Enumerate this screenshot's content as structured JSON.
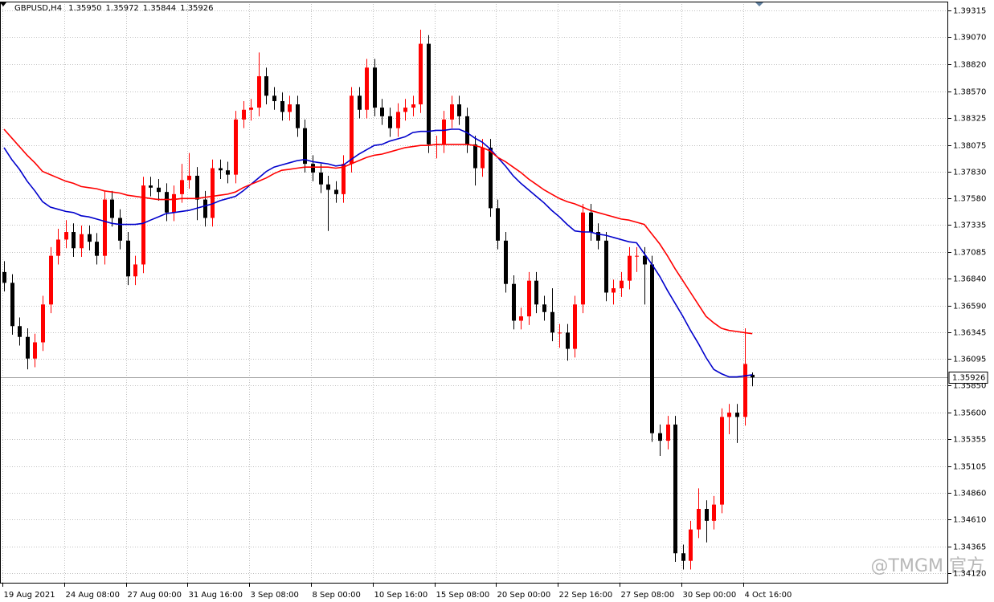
{
  "chart_data": {
    "type": "candlestick",
    "header": {
      "symbol": "GBPUSD,H4",
      "ohlc": [
        "1.35950",
        "1.35972",
        "1.35844",
        "1.35926"
      ]
    },
    "watermark": "@TMGM 官方",
    "up_color": "#ff0000",
    "down_color": "#000000",
    "categories": [
      "19 Aug 2021",
      null,
      null,
      null,
      null,
      null,
      null,
      null,
      "24 Aug 08:00",
      null,
      null,
      null,
      null,
      null,
      null,
      null,
      "27 Aug 00:00",
      null,
      null,
      null,
      null,
      null,
      null,
      null,
      "31 Aug 16:00",
      null,
      null,
      null,
      null,
      null,
      null,
      null,
      "3 Sep 08:00",
      null,
      null,
      null,
      null,
      null,
      null,
      null,
      "8 Sep 00:00",
      null,
      null,
      null,
      null,
      null,
      null,
      null,
      "10 Sep 16:00",
      null,
      null,
      null,
      null,
      null,
      null,
      null,
      "15 Sep 08:00",
      null,
      null,
      null,
      null,
      null,
      null,
      null,
      "20 Sep 00:00",
      null,
      null,
      null,
      null,
      null,
      null,
      null,
      "22 Sep 16:00",
      null,
      null,
      null,
      null,
      null,
      null,
      null,
      "27 Sep 08:00",
      null,
      null,
      null,
      null,
      null,
      null,
      null,
      "30 Sep 00:00",
      null,
      null,
      null,
      null,
      null,
      null,
      null,
      "4 Oct 16:00",
      null
    ],
    "candles": [
      [
        1.369,
        1.37,
        1.3672,
        1.368
      ],
      [
        1.368,
        1.3688,
        1.3632,
        1.364
      ],
      [
        1.364,
        1.3648,
        1.3622,
        1.363
      ],
      [
        1.363,
        1.3638,
        1.36,
        1.361
      ],
      [
        1.361,
        1.3633,
        1.3602,
        1.3625
      ],
      [
        1.3625,
        1.3668,
        1.3617,
        1.366
      ],
      [
        1.366,
        1.3713,
        1.3652,
        1.3705
      ],
      [
        1.3705,
        1.373,
        1.3697,
        1.372
      ],
      [
        1.372,
        1.3738,
        1.3712,
        1.3727
      ],
      [
        1.3727,
        1.3735,
        1.3704,
        1.3712
      ],
      [
        1.3712,
        1.3733,
        1.3704,
        1.3725
      ],
      [
        1.3725,
        1.3733,
        1.371,
        1.3718
      ],
      [
        1.3718,
        1.3726,
        1.3697,
        1.3705
      ],
      [
        1.3705,
        1.3765,
        1.3697,
        1.3757
      ],
      [
        1.3757,
        1.3765,
        1.3732,
        1.374
      ],
      [
        1.374,
        1.3748,
        1.3711,
        1.3719
      ],
      [
        1.3719,
        1.3727,
        1.3678,
        1.3686
      ],
      [
        1.3686,
        1.3705,
        1.3678,
        1.3697
      ],
      [
        1.3697,
        1.3778,
        1.3689,
        1.377
      ],
      [
        1.377,
        1.3778,
        1.376,
        1.3768
      ],
      [
        1.3768,
        1.3776,
        1.3756,
        1.3764
      ],
      [
        1.3764,
        1.3772,
        1.3737,
        1.3745
      ],
      [
        1.3745,
        1.377,
        1.3737,
        1.3762
      ],
      [
        1.3762,
        1.379,
        1.3754,
        1.3775
      ],
      [
        1.3775,
        1.38,
        1.3767,
        1.3779
      ],
      [
        1.3779,
        1.3787,
        1.3738,
        1.3757
      ],
      [
        1.3757,
        1.3765,
        1.3732,
        1.374
      ],
      [
        1.374,
        1.3794,
        1.3732,
        1.3786
      ],
      [
        1.3786,
        1.3794,
        1.3776,
        1.3784
      ],
      [
        1.3784,
        1.3792,
        1.3772,
        1.378
      ],
      [
        1.378,
        1.3839,
        1.3772,
        1.3831
      ],
      [
        1.3831,
        1.3848,
        1.3823,
        1.384
      ],
      [
        1.384,
        1.385,
        1.383,
        1.3842
      ],
      [
        1.3842,
        1.3893,
        1.3834,
        1.3871
      ],
      [
        1.3871,
        1.3879,
        1.3845,
        1.3853
      ],
      [
        1.3853,
        1.3861,
        1.384,
        1.3848
      ],
      [
        1.3848,
        1.3856,
        1.383,
        1.3838
      ],
      [
        1.3838,
        1.3853,
        1.383,
        1.3845
      ],
      [
        1.3845,
        1.3853,
        1.3815,
        1.3823
      ],
      [
        1.3823,
        1.3831,
        1.3782,
        1.379
      ],
      [
        1.379,
        1.3798,
        1.3774,
        1.3782
      ],
      [
        1.3782,
        1.379,
        1.3763,
        1.3771
      ],
      [
        1.3771,
        1.3779,
        1.3728,
        1.3766
      ],
      [
        1.3766,
        1.3774,
        1.3754,
        1.3762
      ],
      [
        1.3762,
        1.3798,
        1.3754,
        1.379
      ],
      [
        1.379,
        1.3861,
        1.3782,
        1.3853
      ],
      [
        1.3853,
        1.3861,
        1.3832,
        1.384
      ],
      [
        1.384,
        1.3887,
        1.3832,
        1.3879
      ],
      [
        1.3879,
        1.3887,
        1.3834,
        1.3842
      ],
      [
        1.3842,
        1.385,
        1.3826,
        1.3834
      ],
      [
        1.3834,
        1.3842,
        1.3815,
        1.3823
      ],
      [
        1.3823,
        1.3846,
        1.3815,
        1.3838
      ],
      [
        1.3838,
        1.385,
        1.383,
        1.3842
      ],
      [
        1.3842,
        1.3853,
        1.3834,
        1.3845
      ],
      [
        1.3845,
        1.3914,
        1.3837,
        1.3901
      ],
      [
        1.3901,
        1.3909,
        1.38,
        1.3808
      ],
      [
        1.3808,
        1.3816,
        1.3795,
        1.3808
      ],
      [
        1.3808,
        1.3839,
        1.38,
        1.3831
      ],
      [
        1.3831,
        1.3853,
        1.3823,
        1.3845
      ],
      [
        1.3845,
        1.3853,
        1.3826,
        1.3834
      ],
      [
        1.3834,
        1.3842,
        1.38,
        1.3808
      ],
      [
        1.3808,
        1.3816,
        1.377,
        1.3786
      ],
      [
        1.3786,
        1.3813,
        1.3778,
        1.3805
      ],
      [
        1.3805,
        1.3813,
        1.3741,
        1.3749
      ],
      [
        1.3749,
        1.3757,
        1.3711,
        1.3719
      ],
      [
        1.3719,
        1.3727,
        1.3671,
        1.3679
      ],
      [
        1.3679,
        1.3687,
        1.3637,
        1.3645
      ],
      [
        1.3645,
        1.3657,
        1.3637,
        1.3649
      ],
      [
        1.3649,
        1.369,
        1.3641,
        1.3682
      ],
      [
        1.3682,
        1.369,
        1.3652,
        1.366
      ],
      [
        1.366,
        1.3668,
        1.3645,
        1.3653
      ],
      [
        1.3653,
        1.3675,
        1.3626,
        1.3634
      ],
      [
        1.3634,
        1.3642,
        1.362,
        1.3634
      ],
      [
        1.3634,
        1.3642,
        1.3608,
        1.3619
      ],
      [
        1.3619,
        1.3668,
        1.3611,
        1.366
      ],
      [
        1.366,
        1.3753,
        1.3652,
        1.3745
      ],
      [
        1.3745,
        1.3753,
        1.3719,
        1.3727
      ],
      [
        1.3727,
        1.3735,
        1.3711,
        1.3719
      ],
      [
        1.3719,
        1.3727,
        1.3663,
        1.3671
      ],
      [
        1.3671,
        1.3683,
        1.366,
        1.3675
      ],
      [
        1.3675,
        1.369,
        1.3667,
        1.3682
      ],
      [
        1.3682,
        1.3713,
        1.3674,
        1.3705
      ],
      [
        1.3705,
        1.3713,
        1.369,
        1.3705
      ],
      [
        1.3705,
        1.3713,
        1.366,
        1.3697
      ],
      [
        1.3697,
        1.3705,
        1.3533,
        1.3541
      ],
      [
        1.3541,
        1.3549,
        1.352,
        1.3534
      ],
      [
        1.3534,
        1.3557,
        1.3526,
        1.3549
      ],
      [
        1.3549,
        1.3557,
        1.3422,
        1.343
      ],
      [
        1.343,
        1.3438,
        1.3415,
        1.3423
      ],
      [
        1.3423,
        1.346,
        1.3415,
        1.3452
      ],
      [
        1.3452,
        1.349,
        1.3444,
        1.3471
      ],
      [
        1.3471,
        1.3479,
        1.344,
        1.346
      ],
      [
        1.346,
        1.3483,
        1.3452,
        1.3475
      ],
      [
        1.3475,
        1.3564,
        1.3467,
        1.3556
      ],
      [
        1.3556,
        1.3568,
        1.354,
        1.356
      ],
      [
        1.356,
        1.3568,
        1.3532,
        1.3556
      ],
      [
        1.3556,
        1.3638,
        1.3548,
        1.3605
      ],
      [
        1.3595,
        1.35972,
        1.35844,
        1.35926
      ]
    ],
    "series": [
      {
        "color": "#0000cc",
        "values": [
          1.3805,
          1.3794,
          1.3785,
          1.3774,
          1.3765,
          1.3755,
          1.375,
          1.3748,
          1.3746,
          1.3745,
          1.3742,
          1.3741,
          1.3739,
          1.3737,
          1.3735,
          1.3734,
          1.3734,
          1.3734,
          1.3735,
          1.3738,
          1.3741,
          1.3744,
          1.3745,
          1.3746,
          1.3747,
          1.3749,
          1.3751,
          1.3753,
          1.3756,
          1.3758,
          1.376,
          1.3765,
          1.3771,
          1.3777,
          1.3783,
          1.3787,
          1.3789,
          1.3791,
          1.3793,
          1.3794,
          1.3792,
          1.3791,
          1.379,
          1.3788,
          1.3789,
          1.3794,
          1.3799,
          1.3803,
          1.3807,
          1.3808,
          1.3811,
          1.3813,
          1.3815,
          1.3819,
          1.382,
          1.382,
          1.3821,
          1.3821,
          1.3822,
          1.3822,
          1.3819,
          1.3814,
          1.381,
          1.3804,
          1.3796,
          1.3788,
          1.3779,
          1.3772,
          1.3766,
          1.376,
          1.3754,
          1.3747,
          1.3741,
          1.3734,
          1.3728,
          1.3727,
          1.3727,
          1.3725,
          1.3724,
          1.3722,
          1.372,
          1.3718,
          1.3717,
          1.3707,
          1.3697,
          1.3686,
          1.3673,
          1.3661,
          1.3649,
          1.3636,
          1.3624,
          1.3611,
          1.36,
          1.3596,
          1.3593,
          1.3593,
          1.3594,
          1.3595
        ]
      },
      {
        "color": "#ff0000",
        "values": [
          1.3822,
          1.3814,
          1.3806,
          1.3798,
          1.3791,
          1.3783,
          1.378,
          1.3777,
          1.3774,
          1.3772,
          1.3769,
          1.3768,
          1.3767,
          1.3765,
          1.3764,
          1.3763,
          1.3761,
          1.376,
          1.3759,
          1.3758,
          1.3757,
          1.3757,
          1.3757,
          1.3758,
          1.3758,
          1.3758,
          1.3759,
          1.376,
          1.3761,
          1.3762,
          1.3764,
          1.3768,
          1.3771,
          1.3774,
          1.3777,
          1.3781,
          1.3784,
          1.3785,
          1.3786,
          1.3787,
          1.3787,
          1.3787,
          1.3787,
          1.3786,
          1.3787,
          1.379,
          1.3793,
          1.3796,
          1.3798,
          1.3799,
          1.3801,
          1.3803,
          1.3805,
          1.3806,
          1.3807,
          1.3807,
          1.3808,
          1.3808,
          1.3808,
          1.3808,
          1.3808,
          1.3807,
          1.3805,
          1.3802,
          1.3796,
          1.3792,
          1.3787,
          1.3782,
          1.3776,
          1.3771,
          1.3766,
          1.3762,
          1.3758,
          1.3755,
          1.3753,
          1.375,
          1.3747,
          1.3745,
          1.3743,
          1.3741,
          1.3739,
          1.3738,
          1.3736,
          1.3734,
          1.3725,
          1.3716,
          1.3705,
          1.3693,
          1.3682,
          1.3671,
          1.366,
          1.3649,
          1.3643,
          1.3638,
          1.3636,
          1.3635,
          1.3634,
          1.3633
        ]
      }
    ],
    "last_price": {
      "value": 1.35926,
      "label": "1.35926"
    },
    "ylim": [
      1.3402,
      1.394
    ],
    "yticks": [
      1.39315,
      {
        "value": 1.3907,
        "label": "1.39070"
      },
      {
        "value": 1.3882,
        "label": "1.38820"
      },
      {
        "value": 1.3857,
        "label": "1.38570"
      },
      1.38325,
      1.38075,
      {
        "value": 1.3783,
        "label": "1.37830"
      },
      {
        "value": 1.3758,
        "label": "1.37580"
      },
      1.37335,
      1.37085,
      {
        "value": 1.3684,
        "label": "1.36840"
      },
      {
        "value": 1.3659,
        "label": "1.36590"
      },
      1.36345,
      1.36095,
      {
        "value": 1.3585,
        "label": "1.35850"
      },
      {
        "value": 1.356,
        "label": "1.35600"
      },
      1.35355,
      1.35105,
      {
        "value": 1.3486,
        "label": "1.34860"
      },
      {
        "value": 1.3461,
        "label": "1.34610"
      },
      1.34365,
      {
        "value": 1.3412,
        "label": "1.34120"
      }
    ],
    "grid": true
  }
}
